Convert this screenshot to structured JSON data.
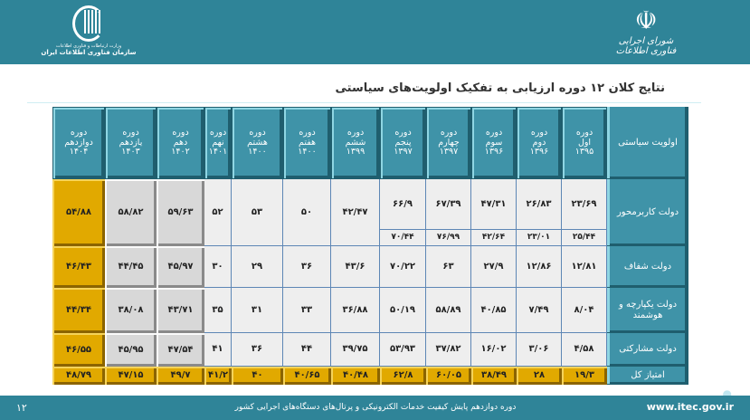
{
  "header": {
    "left_logo_line1": "وزارت ارتباطات و فناوری اطلاعات",
    "left_logo_line2": "سازمان فناوری اطلاعات ایران",
    "right_logo_text": "شورای اجرایی فناوری اطلاعات"
  },
  "title": "نتایج کلان ۱۲ دوره ارزیابی به تفکیک اولویت‌های سیاستی",
  "table": {
    "corner": "اولویت سیاستی",
    "periods": [
      {
        "l1": "دوره",
        "l2": "اول",
        "year": "۱۳۹۵"
      },
      {
        "l1": "دوره",
        "l2": "دوم",
        "year": "۱۳۹۶"
      },
      {
        "l1": "دوره",
        "l2": "سوم",
        "year": "۱۳۹۶"
      },
      {
        "l1": "دوره",
        "l2": "چهارم",
        "year": "۱۳۹۷"
      },
      {
        "l1": "دوره",
        "l2": "پنجم",
        "year": "۱۳۹۷"
      },
      {
        "l1": "دوره",
        "l2": "ششم",
        "year": "۱۳۹۹"
      },
      {
        "l1": "دوره",
        "l2": "هفتم",
        "year": "۱۴۰۰"
      },
      {
        "l1": "دوره",
        "l2": "هشتم",
        "year": "۱۴۰۰"
      },
      {
        "l1": "دوره",
        "l2": "نهم",
        "year": "۱۴۰۱"
      },
      {
        "l1": "دوره",
        "l2": "دهم",
        "year": "۱۴۰۲"
      },
      {
        "l1": "دوره",
        "l2": "یازدهم",
        "year": "۱۴۰۳"
      },
      {
        "l1": "دوره",
        "l2": "دوازدهم",
        "year": "۱۴۰۴"
      }
    ],
    "rows": [
      {
        "label": "دولت کاربرمحور",
        "values": [
          "۲۳/۶۹",
          "۲۶/۸۳",
          "۴۷/۳۱",
          "۶۷/۳۹",
          "۶۶/۹",
          "۴۲/۴۷",
          "۵۰",
          "۵۳",
          "۵۲",
          "۵۹/۶۳",
          "۵۸/۸۲",
          "۵۴/۸۸"
        ],
        "sub_values": [
          "۲۵/۴۴",
          "۲۳/۰۱",
          "۴۲/۶۴",
          "۷۶/۹۹",
          "۷۰/۴۴"
        ]
      },
      {
        "label": "دولت شفاف",
        "values": [
          "۱۲/۸۱",
          "۱۲/۸۶",
          "۲۷/۹",
          "۶۳",
          "۷۰/۲۲",
          "۴۳/۶",
          "۳۶",
          "۲۹",
          "۳۰",
          "۴۵/۹۷",
          "۴۴/۴۵",
          "۴۶/۴۳"
        ]
      },
      {
        "label": "دولت یکپارچه و هوشمند",
        "values": [
          "۸/۰۴",
          "۷/۴۹",
          "۴۰/۸۵",
          "۵۸/۸۹",
          "۵۰/۱۹",
          "۳۶/۸۸",
          "۳۳",
          "۳۱",
          "۳۵",
          "۴۳/۷۱",
          "۳۸/۰۸",
          "۴۴/۳۴"
        ]
      },
      {
        "label": "دولت مشارکتی",
        "values": [
          "۴/۵۸",
          "۳/۰۶",
          "۱۶/۰۲",
          "۳۷/۸۲",
          "۵۳/۹۳",
          "۳۹/۷۵",
          "۴۴",
          "۳۶",
          "۴۱",
          "۴۷/۵۴",
          "۴۵/۹۵",
          "۴۶/۵۵"
        ]
      }
    ],
    "total": {
      "label": "امتیاز کل",
      "values": [
        "۱۹/۳",
        "۲۸",
        "۳۸/۴۹",
        "۶۰/۰۵",
        "۶۲/۸",
        "۴۰/۴۸",
        "۴۰/۶۵",
        "۴۰",
        "۴۱/۲",
        "۴۹/۷",
        "۴۷/۱۵",
        "۴۸/۷۹"
      ]
    }
  },
  "footer": {
    "page": "۱۲",
    "text": "دوره دوازدهم پایش کیفیت خدمات الکترونیکی و پرتال‌های دستگاه‌های اجرایی کشور",
    "url": "www.itec.gov.ir"
  },
  "colors": {
    "teal": "#2f8498",
    "gold": "#e1a900",
    "gray": "#d8d8d8"
  }
}
